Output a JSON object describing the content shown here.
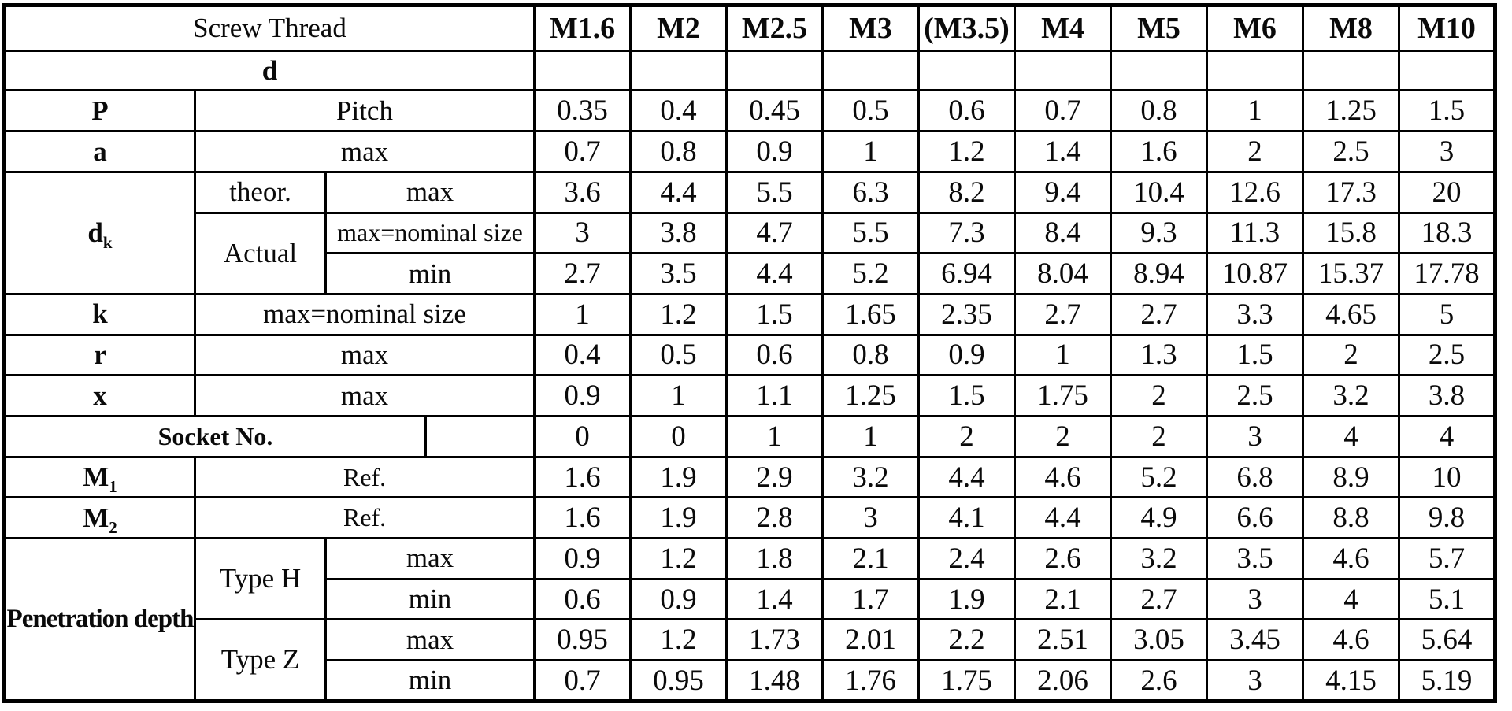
{
  "header": {
    "corner": "Screw Thread",
    "sizes": [
      "M1.6",
      "M2",
      "M2.5",
      "M3",
      "(M3.5)",
      "M4",
      "M5",
      "M6",
      "M8",
      "M10"
    ]
  },
  "rows": {
    "d": {
      "label": "d"
    },
    "pitch": {
      "label": "P",
      "spec": "Pitch",
      "values": [
        "0.35",
        "0.4",
        "0.45",
        "0.5",
        "0.6",
        "0.7",
        "0.8",
        "1",
        "1.25",
        "1.5"
      ]
    },
    "a": {
      "label": "a",
      "spec": "max",
      "values": [
        "0.7",
        "0.8",
        "0.9",
        "1",
        "1.2",
        "1.4",
        "1.6",
        "2",
        "2.5",
        "3"
      ]
    },
    "dk": {
      "label_base": "d",
      "label_sub": "k",
      "theor_group": "theor.",
      "actual_group": "Actual",
      "theor_max": {
        "spec": "max",
        "values": [
          "3.6",
          "4.4",
          "5.5",
          "6.3",
          "8.2",
          "9.4",
          "10.4",
          "12.6",
          "17.3",
          "20"
        ]
      },
      "actual_max": {
        "spec": "max=nominal size",
        "values": [
          "3",
          "3.8",
          "4.7",
          "5.5",
          "7.3",
          "8.4",
          "9.3",
          "11.3",
          "15.8",
          "18.3"
        ]
      },
      "actual_min": {
        "spec": "min",
        "values": [
          "2.7",
          "3.5",
          "4.4",
          "5.2",
          "6.94",
          "8.04",
          "8.94",
          "10.87",
          "15.37",
          "17.78"
        ]
      }
    },
    "k": {
      "label": "k",
      "spec": "max=nominal size",
      "values": [
        "1",
        "1.2",
        "1.5",
        "1.65",
        "2.35",
        "2.7",
        "2.7",
        "3.3",
        "4.65",
        "5"
      ]
    },
    "r": {
      "label": "r",
      "spec": "max",
      "values": [
        "0.4",
        "0.5",
        "0.6",
        "0.8",
        "0.9",
        "1",
        "1.3",
        "1.5",
        "2",
        "2.5"
      ]
    },
    "x": {
      "label": "x",
      "spec": "max",
      "values": [
        "0.9",
        "1",
        "1.1",
        "1.25",
        "1.5",
        "1.75",
        "2",
        "2.5",
        "3.2",
        "3.8"
      ]
    },
    "socket": {
      "label": "Socket No.",
      "values": [
        "0",
        "0",
        "1",
        "1",
        "2",
        "2",
        "2",
        "3",
        "4",
        "4"
      ]
    },
    "m1": {
      "label_base": "M",
      "label_sub": "1",
      "spec": "Ref.",
      "values": [
        "1.6",
        "1.9",
        "2.9",
        "3.2",
        "4.4",
        "4.6",
        "5.2",
        "6.8",
        "8.9",
        "10"
      ]
    },
    "m2": {
      "label_base": "M",
      "label_sub": "2",
      "spec": "Ref.",
      "values": [
        "1.6",
        "1.9",
        "2.8",
        "3",
        "4.1",
        "4.4",
        "4.9",
        "6.6",
        "8.8",
        "9.8"
      ]
    },
    "penetration": {
      "label": "Penetration depth",
      "h_group": "Type H",
      "z_group": "Type Z",
      "h_max": {
        "spec": "max",
        "values": [
          "0.9",
          "1.2",
          "1.8",
          "2.1",
          "2.4",
          "2.6",
          "3.2",
          "3.5",
          "4.6",
          "5.7"
        ]
      },
      "h_min": {
        "spec": "min",
        "values": [
          "0.6",
          "0.9",
          "1.4",
          "1.7",
          "1.9",
          "2.1",
          "2.7",
          "3",
          "4",
          "5.1"
        ]
      },
      "z_max": {
        "spec": "max",
        "values": [
          "0.95",
          "1.2",
          "1.73",
          "2.01",
          "2.2",
          "2.51",
          "3.05",
          "3.45",
          "4.6",
          "5.64"
        ]
      },
      "z_min": {
        "spec": "min",
        "values": [
          "0.7",
          "0.95",
          "1.48",
          "1.76",
          "1.75",
          "2.06",
          "2.6",
          "3",
          "4.15",
          "5.19"
        ]
      }
    }
  },
  "colors": {
    "border": "#000000",
    "text": "#0a0a0a",
    "background": "#ffffff"
  }
}
